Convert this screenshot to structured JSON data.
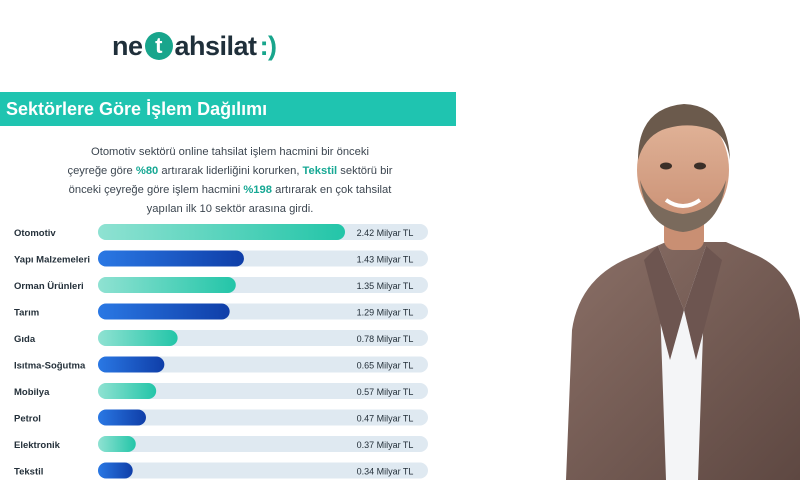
{
  "logo": {
    "prefix": "ne",
    "t": "t",
    "rest": "ahsilat",
    "mark": ":)"
  },
  "banner": {
    "title": "Sektörlere Göre İşlem Dağılımı"
  },
  "intro": {
    "p1": "Otomotiv sektörü online tahsilat işlem hacmini bir önceki",
    "p2": "çeyreğe göre ",
    "h1": "%80",
    "p3": " artırarak liderliğini korurken, ",
    "h2": "Tekstil",
    "p4": " sektörü bir",
    "p5": "önceki çeyreğe göre işlem hacmini ",
    "h3": "%198",
    "p6": " artırarak en çok tahsilat",
    "p7": "yapılan ilk 10 sektör arasına girdi."
  },
  "colors": {
    "track": "#dfe9f1",
    "teal_start": "#8fe2d2",
    "teal_end": "#23c5a8",
    "blue_start": "#2a78e4",
    "blue_end": "#0f3ea8"
  },
  "chart_data": {
    "type": "bar",
    "orientation": "horizontal",
    "unit": "Milyar TL",
    "categories": [
      "Otomotiv",
      "Yapı Malzemeleri",
      "Orman Ürünleri",
      "Tarım",
      "Gıda",
      "Isıtma-Soğutma",
      "Mobilya",
      "Petrol",
      "Elektronik",
      "Tekstil"
    ],
    "values": [
      2.42,
      1.43,
      1.35,
      1.29,
      0.78,
      0.65,
      0.57,
      0.47,
      0.37,
      0.34
    ],
    "value_labels": [
      "2.42 Milyar TL",
      "1.43 Milyar TL",
      "1.35 Milyar TL",
      "1.29 Milyar TL",
      "0.78 Milyar TL",
      "0.65 Milyar TL",
      "0.57 Milyar TL",
      "0.47 Milyar TL",
      "0.37 Milyar TL",
      "0.34 Milyar TL"
    ],
    "bar_colors": [
      "teal",
      "blue",
      "teal",
      "blue",
      "teal",
      "blue",
      "teal",
      "blue",
      "teal",
      "blue"
    ],
    "xlim": [
      0,
      2.42
    ],
    "grid": false,
    "legend": "none"
  }
}
